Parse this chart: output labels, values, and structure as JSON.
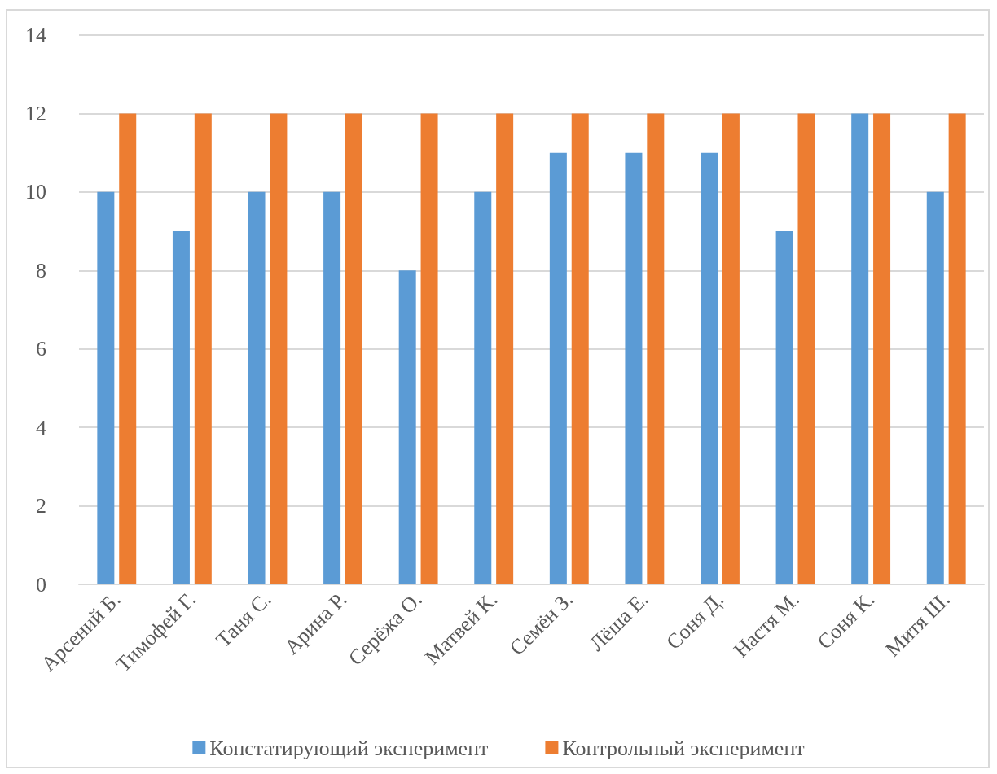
{
  "chart_data": {
    "type": "bar",
    "categories": [
      "Арсений Б.",
      "Тимофей Г.",
      "Таня С.",
      "Арина Р.",
      "Серёжа О.",
      "Матвей К.",
      "Семён З.",
      "Лёша Е.",
      "Соня Д.",
      "Настя М.",
      "Соня К.",
      "Митя Ш."
    ],
    "series": [
      {
        "name": "Констатирующий эксперимент",
        "color": "#5b9bd5",
        "values": [
          10,
          9,
          10,
          10,
          8,
          10,
          11,
          11,
          11,
          9,
          12,
          10
        ]
      },
      {
        "name": "Контрольный эксперимент",
        "color": "#ed7d31",
        "values": [
          12,
          12,
          12,
          12,
          12,
          12,
          12,
          12,
          12,
          12,
          12,
          12
        ]
      }
    ],
    "ylim": [
      0,
      14
    ],
    "yticks": [
      0,
      2,
      4,
      6,
      8,
      10,
      12,
      14
    ],
    "grid": "y",
    "legend": "bottom"
  }
}
